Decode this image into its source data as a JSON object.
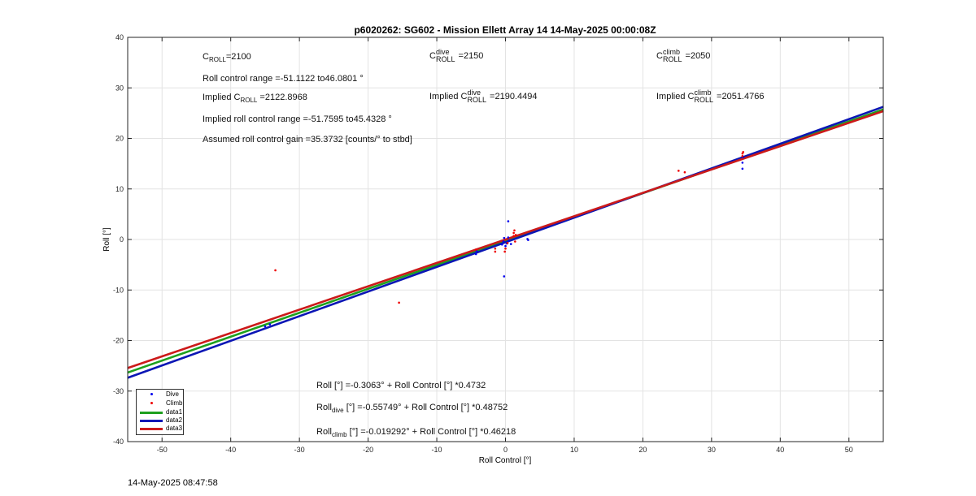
{
  "colors": {
    "dive": "#0000ee",
    "climb": "#ee0000",
    "data1": "#1ea01e",
    "data2": "#0b16b5",
    "data3": "#cc1a1a"
  },
  "annotations": {
    "c_roll_base": "C",
    "c_roll_sub": "ROLL",
    "c_roll_val": "=2100",
    "range": "Roll control range =-51.1122 to46.0801 °",
    "implied_c_prefix": "Implied C",
    "implied_c_sub": "ROLL",
    "implied_c_val": " =2122.8968",
    "implied_range": "Implied roll control range =-51.7595 to45.4328 °",
    "gain": "Assumed roll control gain =35.3732 [counts/° to stbd]",
    "c_dive_base": "C",
    "c_dive_sup": "dive",
    "c_dive_sub": "ROLL",
    "c_dive_val": " =2150",
    "implied_dive_prefix": "Implied C",
    "implied_dive_sup": "dive",
    "implied_dive_sub": "ROLL",
    "implied_dive_val": " =2190.4494",
    "c_climb_base": "C",
    "c_climb_sup": "climb",
    "c_climb_sub": "ROLL",
    "c_climb_val": " =2050",
    "implied_climb_prefix": "Implied C",
    "implied_climb_sup": "climb",
    "implied_climb_sub": "ROLL",
    "implied_climb_val": " =2051.4766",
    "fit_all": "Roll [°] =-0.3063° + Roll Control [°] *0.4732",
    "fit_dive_prefix": "Roll",
    "fit_dive_sub": "dive",
    "fit_dive_rest": " [°] =-0.55749° + Roll Control [°] *0.48752",
    "fit_climb_prefix": "Roll",
    "fit_climb_sub": "climb",
    "fit_climb_rest": " [°] =-0.019292° + Roll Control [°] *0.46218"
  },
  "timestamp": "14-May-2025 08:47:58",
  "chart_data": {
    "type": "scatter",
    "title": "p6020262: SG602 - Mission Ellett Array 14 14-May-2025 00:00:08Z",
    "xlabel": "Roll Control [°]",
    "ylabel": "Roll [°]",
    "xlim": [
      -55,
      55
    ],
    "ylim": [
      -40,
      40
    ],
    "xticks": [
      -50,
      -40,
      -30,
      -20,
      -10,
      0,
      10,
      20,
      30,
      40,
      50
    ],
    "yticks": [
      -40,
      -30,
      -20,
      -10,
      0,
      10,
      20,
      30,
      40
    ],
    "grid": true,
    "legend_position": "bottom-left",
    "series": [
      {
        "name": "Dive",
        "kind": "points",
        "color": "#0000ee",
        "points": [
          [
            -35,
            -17.2
          ],
          [
            -34.3,
            -16.8
          ],
          [
            -4.3,
            -2.9
          ],
          [
            -4.2,
            -2.3
          ],
          [
            -0.5,
            -1.0
          ],
          [
            -0.3,
            -0.4
          ],
          [
            -0.2,
            0.3
          ],
          [
            0.0,
            -1.3
          ],
          [
            0.2,
            -0.8
          ],
          [
            0.4,
            0.4
          ],
          [
            0.5,
            -0.2
          ],
          [
            0.8,
            -0.9
          ],
          [
            0.4,
            3.6
          ],
          [
            -0.2,
            -7.3
          ],
          [
            3.2,
            0.1
          ],
          [
            3.3,
            -0.1
          ],
          [
            34.5,
            14.0
          ],
          [
            34.5,
            15.2
          ],
          [
            34.6,
            16.3
          ]
        ]
      },
      {
        "name": "Climb",
        "kind": "points",
        "color": "#ee0000",
        "points": [
          [
            -33.5,
            -6.1
          ],
          [
            -15.5,
            -12.5
          ],
          [
            -4.3,
            -2.0
          ],
          [
            -1.5,
            -1.8
          ],
          [
            -1.5,
            -2.4
          ],
          [
            -0.1,
            -2.4
          ],
          [
            0.0,
            -1.8
          ],
          [
            0.3,
            -0.7
          ],
          [
            1.2,
            0.7
          ],
          [
            1.2,
            1.3
          ],
          [
            1.3,
            1.8
          ],
          [
            1.5,
            0.9
          ],
          [
            1.4,
            -0.4
          ],
          [
            25.2,
            13.6
          ],
          [
            26.1,
            13.3
          ],
          [
            34.5,
            16.5
          ],
          [
            34.5,
            17.0
          ],
          [
            34.6,
            17.3
          ]
        ]
      },
      {
        "name": "data1",
        "kind": "line",
        "color": "#1ea01e",
        "intercept": -0.3063,
        "slope": 0.4732
      },
      {
        "name": "data2",
        "kind": "line",
        "color": "#0b16b5",
        "intercept": -0.55749,
        "slope": 0.48752
      },
      {
        "name": "data3",
        "kind": "line",
        "color": "#cc1a1a",
        "intercept": -0.019292,
        "slope": 0.46218
      }
    ]
  }
}
